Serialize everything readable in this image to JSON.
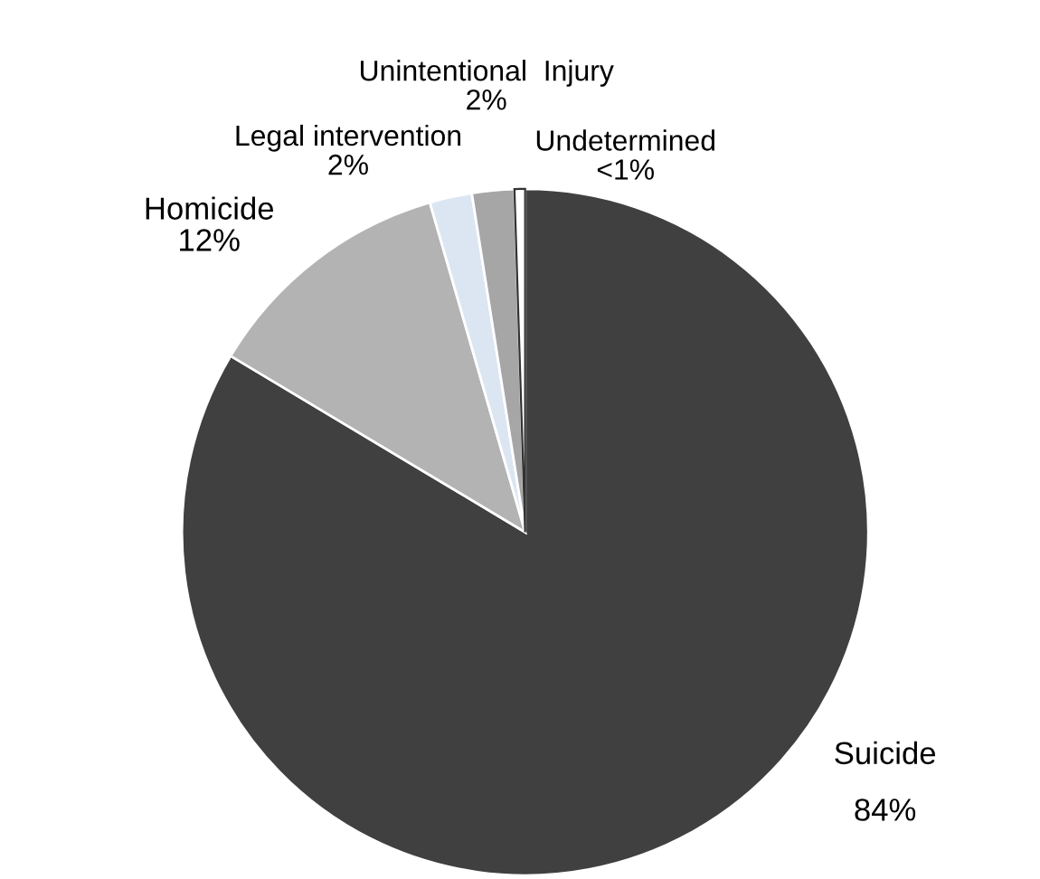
{
  "chart_data": {
    "type": "pie",
    "categories": [
      "Suicide",
      "Homicide",
      "Legal intervention",
      "Unintentional  Injury",
      "Undetermined"
    ],
    "values": [
      84,
      12,
      2,
      2,
      0.5
    ],
    "value_labels": [
      "84%",
      "12%",
      "2%",
      "2%",
      "<1%"
    ],
    "colors": [
      "#404040",
      "#b3b3b3",
      "#dce6f2",
      "#a6a6a6",
      "#ffffff"
    ]
  }
}
